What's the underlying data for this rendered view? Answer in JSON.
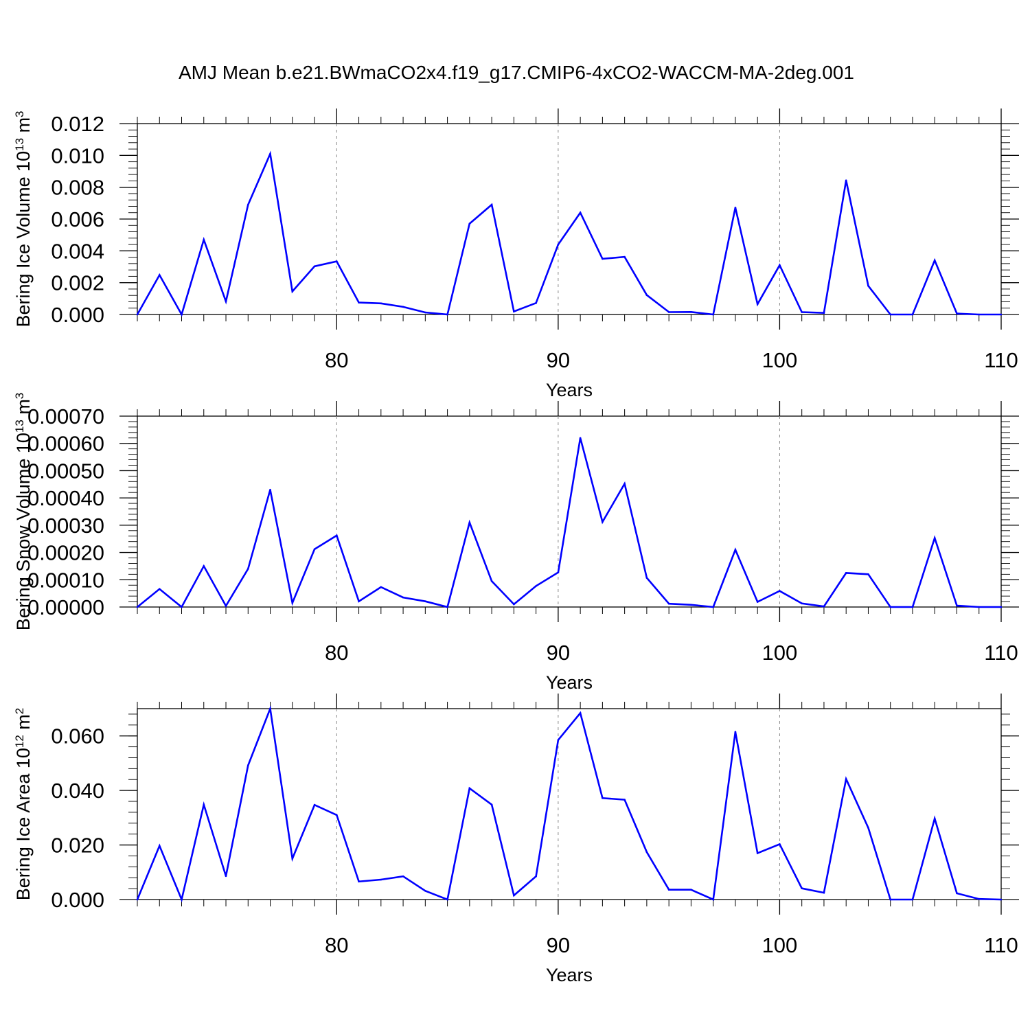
{
  "figure": {
    "title": "AMJ Mean b.e21.BWmaCO2x4.f19_g17.CMIP6-4xCO2-WACCM-MA-2deg.001"
  },
  "chart_data": [
    {
      "type": "line",
      "ylabel": "Bering Ice Volume 10",
      "ylabel_exp": "13",
      "ylabel_unit": " m",
      "ylabel_unit_exp": "3",
      "xlabel": "Years",
      "xlim": [
        71,
        110
      ],
      "ylim": [
        0,
        0.012
      ],
      "x_ticks": [
        "80",
        "90",
        "100",
        "110"
      ],
      "y_ticks": [
        "0.000",
        "0.002",
        "0.004",
        "0.006",
        "0.008",
        "0.010",
        "0.012"
      ],
      "color": "#0000ff",
      "x": [
        71,
        72,
        73,
        74,
        75,
        76,
        77,
        78,
        79,
        80,
        81,
        82,
        83,
        84,
        85,
        86,
        87,
        88,
        89,
        90,
        91,
        92,
        93,
        94,
        95,
        96,
        97,
        98,
        99,
        100,
        101,
        102,
        103,
        104,
        105,
        106,
        107,
        108,
        109,
        110
      ],
      "y": [
        0.0,
        0.00248,
        0.0,
        0.0047,
        0.00082,
        0.0069,
        0.0101,
        0.00145,
        0.00303,
        0.00334,
        0.00075,
        0.0007,
        0.00048,
        0.00013,
        0.0,
        0.00571,
        0.0069,
        0.00019,
        0.00072,
        0.0044,
        0.0064,
        0.0035,
        0.00362,
        0.00122,
        0.00015,
        0.00016,
        0.0,
        0.00672,
        0.00065,
        0.0031,
        0.00015,
        0.0001,
        0.00843,
        0.0018,
        0.0,
        0.0,
        0.0034,
        6e-05,
        0.0,
        0.0
      ]
    },
    {
      "type": "line",
      "ylabel": "Bering Snow Volume 10",
      "ylabel_exp": "13",
      "ylabel_unit": " m",
      "ylabel_unit_exp": "3",
      "xlabel": "Years",
      "xlim": [
        71,
        110
      ],
      "ylim": [
        0,
        0.0007
      ],
      "x_ticks": [
        "80",
        "90",
        "100",
        "110"
      ],
      "y_ticks": [
        "0.00000",
        "0.00010",
        "0.00020",
        "0.00030",
        "0.00040",
        "0.00050",
        "0.00060",
        "0.00070"
      ],
      "color": "#0000ff",
      "x": [
        71,
        72,
        73,
        74,
        75,
        76,
        77,
        78,
        79,
        80,
        81,
        82,
        83,
        84,
        85,
        86,
        87,
        88,
        89,
        90,
        91,
        92,
        93,
        94,
        95,
        96,
        97,
        98,
        99,
        100,
        101,
        102,
        103,
        104,
        105,
        106,
        107,
        108,
        109,
        110
      ],
      "y": [
        0.0,
        6.6e-05,
        0.0,
        0.00015,
        4e-06,
        0.00014,
        0.00043,
        1.5e-05,
        0.000212,
        0.000262,
        2.1e-05,
        7.3e-05,
        3.5e-05,
        2.1e-05,
        0.0,
        0.00031,
        9.5e-05,
        1e-05,
        7.7e-05,
        0.000127,
        0.00062,
        0.000312,
        0.000452,
        0.000107,
        1.2e-05,
        8e-06,
        0.0,
        0.00021,
        1.9e-05,
        5.9e-05,
        1.3e-05,
        2e-06,
        0.000125,
        0.00012,
        0.0,
        0.0,
        0.000253,
        5e-06,
        0.0,
        0.0
      ]
    },
    {
      "type": "line",
      "ylabel": "Bering Ice Area 10",
      "ylabel_exp": "12",
      "ylabel_unit": " m",
      "ylabel_unit_exp": "2",
      "xlabel": "Years",
      "xlim": [
        71,
        110
      ],
      "ylim": [
        0,
        0.07
      ],
      "x_ticks": [
        "80",
        "90",
        "100",
        "110"
      ],
      "y_ticks": [
        "0.000",
        "0.020",
        "0.040",
        "0.060"
      ],
      "color": "#0000ff",
      "x": [
        71,
        72,
        73,
        74,
        75,
        76,
        77,
        78,
        79,
        80,
        81,
        82,
        83,
        84,
        85,
        86,
        87,
        88,
        89,
        90,
        91,
        92,
        93,
        94,
        95,
        96,
        97,
        98,
        99,
        100,
        101,
        102,
        103,
        104,
        105,
        106,
        107,
        108,
        109,
        110
      ],
      "y": [
        0.0,
        0.0197,
        0.0,
        0.0348,
        0.0086,
        0.0492,
        0.07,
        0.015,
        0.0347,
        0.031,
        0.0066,
        0.0073,
        0.0085,
        0.0032,
        0.0,
        0.0408,
        0.0348,
        0.0015,
        0.0085,
        0.0585,
        0.0684,
        0.0372,
        0.0366,
        0.0174,
        0.0036,
        0.0036,
        0.0,
        0.0615,
        0.017,
        0.0203,
        0.0041,
        0.0025,
        0.0442,
        0.0263,
        0.0,
        0.0,
        0.0297,
        0.0023,
        0.0002,
        0.0
      ]
    }
  ]
}
